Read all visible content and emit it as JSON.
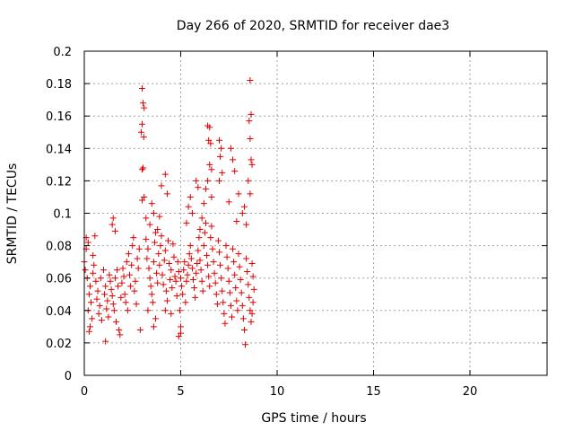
{
  "chart_data": {
    "type": "scatter",
    "title": "Day 266 of 2020, SRMTID for receiver dae3",
    "xlabel": "GPS time / hours",
    "ylabel": "SRMTID / TECUs",
    "xlim": [
      0,
      24
    ],
    "ylim": [
      0,
      0.2
    ],
    "xticks": [
      0,
      5,
      10,
      15,
      20
    ],
    "yticks": [
      0,
      0.02,
      0.04,
      0.06,
      0.08,
      0.1,
      0.12,
      0.14,
      0.16,
      0.18,
      0.2
    ],
    "xtick_labels": [
      "0",
      "5",
      "10",
      "15",
      "20"
    ],
    "ytick_labels": [
      "0",
      "0.02",
      "0.04",
      "0.06",
      "0.08",
      "0.1",
      "0.12",
      "0.14",
      "0.16",
      "0.18",
      "0.2"
    ],
    "grid": true,
    "marker": "+",
    "color": "#e00000",
    "x_data_range_hours": [
      0,
      8.8
    ],
    "series": [
      {
        "name": "SRMTID",
        "points": [
          [
            3.0,
            0.177
          ],
          [
            3.05,
            0.168
          ],
          [
            3.1,
            0.165
          ],
          [
            3.0,
            0.155
          ],
          [
            3.08,
            0.147
          ],
          [
            2.95,
            0.15
          ],
          [
            3.05,
            0.128
          ],
          [
            3.0,
            0.127
          ],
          [
            3.1,
            0.11
          ],
          [
            3.0,
            0.108
          ],
          [
            8.6,
            0.182
          ],
          [
            8.65,
            0.161
          ],
          [
            8.55,
            0.157
          ],
          [
            8.6,
            0.146
          ],
          [
            8.65,
            0.133
          ],
          [
            8.7,
            0.13
          ],
          [
            8.5,
            0.12
          ],
          [
            8.6,
            0.112
          ],
          [
            6.4,
            0.154
          ],
          [
            6.5,
            0.153
          ],
          [
            6.45,
            0.145
          ],
          [
            6.55,
            0.143
          ],
          [
            6.5,
            0.13
          ],
          [
            6.6,
            0.127
          ],
          [
            6.4,
            0.12
          ],
          [
            6.3,
            0.115
          ],
          [
            6.6,
            0.11
          ],
          [
            7.0,
            0.145
          ],
          [
            7.1,
            0.14
          ],
          [
            7.05,
            0.135
          ],
          [
            7.15,
            0.125
          ],
          [
            7.0,
            0.12
          ],
          [
            4.2,
            0.124
          ],
          [
            4.0,
            0.117
          ],
          [
            4.3,
            0.112
          ],
          [
            3.6,
            0.1
          ],
          [
            3.4,
            0.093
          ],
          [
            3.5,
            0.106
          ],
          [
            3.2,
            0.097
          ],
          [
            3.8,
            0.09
          ],
          [
            3.9,
            0.098
          ],
          [
            5.5,
            0.11
          ],
          [
            5.4,
            0.104
          ],
          [
            5.6,
            0.1
          ],
          [
            5.3,
            0.094
          ],
          [
            5.8,
            0.12
          ],
          [
            5.9,
            0.116
          ],
          [
            6.0,
            0.09
          ],
          [
            6.1,
            0.097
          ],
          [
            6.2,
            0.106
          ],
          [
            7.6,
            0.14
          ],
          [
            7.7,
            0.133
          ],
          [
            7.8,
            0.126
          ],
          [
            7.5,
            0.107
          ],
          [
            7.9,
            0.095
          ],
          [
            8.0,
            0.112
          ],
          [
            8.2,
            0.1
          ],
          [
            8.3,
            0.104
          ],
          [
            8.4,
            0.093
          ],
          [
            0.1,
            0.085
          ],
          [
            0.2,
            0.082
          ],
          [
            0.1,
            0.078
          ],
          [
            0.0,
            0.07
          ],
          [
            0.05,
            0.065
          ],
          [
            0.15,
            0.06
          ],
          [
            0.3,
            0.055
          ],
          [
            0.25,
            0.05
          ],
          [
            0.35,
            0.045
          ],
          [
            0.2,
            0.04
          ],
          [
            0.4,
            0.035
          ],
          [
            0.3,
            0.03
          ],
          [
            0.25,
            0.027
          ],
          [
            0.5,
            0.068
          ],
          [
            0.45,
            0.063
          ],
          [
            0.6,
            0.058
          ],
          [
            0.7,
            0.052
          ],
          [
            0.65,
            0.047
          ],
          [
            0.8,
            0.043
          ],
          [
            0.75,
            0.038
          ],
          [
            0.9,
            0.034
          ],
          [
            0.85,
            0.06
          ],
          [
            1.0,
            0.065
          ],
          [
            1.1,
            0.055
          ],
          [
            1.05,
            0.05
          ],
          [
            1.2,
            0.046
          ],
          [
            1.15,
            0.041
          ],
          [
            1.25,
            0.036
          ],
          [
            1.1,
            0.021
          ],
          [
            1.3,
            0.062
          ],
          [
            1.35,
            0.058
          ],
          [
            1.4,
            0.053
          ],
          [
            1.45,
            0.049
          ],
          [
            1.5,
            0.044
          ],
          [
            1.55,
            0.04
          ],
          [
            1.6,
            0.06
          ],
          [
            1.65,
            0.033
          ],
          [
            1.7,
            0.065
          ],
          [
            1.75,
            0.055
          ],
          [
            1.8,
            0.028
          ],
          [
            1.85,
            0.025
          ],
          [
            1.9,
            0.048
          ],
          [
            1.95,
            0.057
          ],
          [
            2.0,
            0.066
          ],
          [
            2.05,
            0.061
          ],
          [
            2.1,
            0.05
          ],
          [
            2.15,
            0.045
          ],
          [
            2.2,
            0.07
          ],
          [
            2.25,
            0.04
          ],
          [
            2.3,
            0.075
          ],
          [
            2.35,
            0.062
          ],
          [
            2.4,
            0.055
          ],
          [
            2.45,
            0.068
          ],
          [
            2.5,
            0.08
          ],
          [
            2.55,
            0.085
          ],
          [
            2.6,
            0.052
          ],
          [
            2.65,
            0.058
          ],
          [
            2.7,
            0.044
          ],
          [
            2.75,
            0.072
          ],
          [
            2.8,
            0.066
          ],
          [
            2.85,
            0.078
          ],
          [
            2.9,
            0.028
          ],
          [
            1.5,
            0.097
          ],
          [
            1.45,
            0.093
          ],
          [
            1.6,
            0.089
          ],
          [
            0.55,
            0.086
          ],
          [
            0.45,
            0.074
          ],
          [
            3.2,
            0.084
          ],
          [
            3.3,
            0.078
          ],
          [
            3.25,
            0.072
          ],
          [
            3.35,
            0.066
          ],
          [
            3.4,
            0.06
          ],
          [
            3.45,
            0.055
          ],
          [
            3.5,
            0.05
          ],
          [
            3.55,
            0.045
          ],
          [
            3.6,
            0.07
          ],
          [
            3.65,
            0.082
          ],
          [
            3.7,
            0.088
          ],
          [
            3.75,
            0.063
          ],
          [
            3.8,
            0.057
          ],
          [
            3.85,
            0.075
          ],
          [
            3.9,
            0.068
          ],
          [
            3.95,
            0.08
          ],
          [
            4.0,
            0.086
          ],
          [
            4.05,
            0.062
          ],
          [
            4.1,
            0.056
          ],
          [
            4.15,
            0.071
          ],
          [
            4.2,
            0.077
          ],
          [
            4.25,
            0.052
          ],
          [
            4.3,
            0.046
          ],
          [
            4.35,
            0.083
          ],
          [
            4.4,
            0.069
          ],
          [
            4.45,
            0.059
          ],
          [
            4.5,
            0.065
          ],
          [
            4.55,
            0.054
          ],
          [
            4.6,
            0.081
          ],
          [
            4.65,
            0.073
          ],
          [
            4.7,
            0.061
          ],
          [
            4.75,
            0.058
          ],
          [
            4.8,
            0.049
          ],
          [
            4.85,
            0.07
          ],
          [
            4.9,
            0.064
          ],
          [
            3.6,
            0.03
          ],
          [
            3.7,
            0.035
          ],
          [
            4.2,
            0.04
          ],
          [
            3.3,
            0.04
          ],
          [
            4.5,
            0.038
          ],
          [
            5.0,
            0.06
          ],
          [
            5.05,
            0.055
          ],
          [
            5.1,
            0.05
          ],
          [
            5.15,
            0.065
          ],
          [
            5.2,
            0.07
          ],
          [
            4.95,
            0.04
          ],
          [
            5.0,
            0.03
          ],
          [
            4.9,
            0.024
          ],
          [
            5.0,
            0.026
          ],
          [
            5.25,
            0.045
          ],
          [
            5.3,
            0.058
          ],
          [
            5.35,
            0.062
          ],
          [
            5.4,
            0.068
          ],
          [
            5.45,
            0.075
          ],
          [
            5.5,
            0.08
          ],
          [
            5.55,
            0.072
          ],
          [
            5.6,
            0.066
          ],
          [
            5.65,
            0.059
          ],
          [
            5.7,
            0.054
          ],
          [
            5.75,
            0.048
          ],
          [
            5.8,
            0.063
          ],
          [
            5.85,
            0.069
          ],
          [
            5.9,
            0.077
          ],
          [
            5.95,
            0.085
          ],
          [
            6.0,
            0.071
          ],
          [
            6.05,
            0.065
          ],
          [
            6.1,
            0.058
          ],
          [
            6.15,
            0.052
          ],
          [
            6.2,
            0.08
          ],
          [
            6.25,
            0.088
          ],
          [
            6.3,
            0.094
          ],
          [
            6.35,
            0.074
          ],
          [
            6.4,
            0.068
          ],
          [
            6.45,
            0.061
          ],
          [
            6.5,
            0.055
          ],
          [
            6.55,
            0.085
          ],
          [
            6.6,
            0.092
          ],
          [
            6.65,
            0.078
          ],
          [
            6.7,
            0.07
          ],
          [
            6.75,
            0.063
          ],
          [
            6.8,
            0.057
          ],
          [
            6.85,
            0.05
          ],
          [
            6.9,
            0.044
          ],
          [
            6.95,
            0.083
          ],
          [
            7.0,
            0.076
          ],
          [
            7.05,
            0.068
          ],
          [
            7.1,
            0.06
          ],
          [
            7.15,
            0.052
          ],
          [
            7.2,
            0.045
          ],
          [
            7.25,
            0.038
          ],
          [
            7.3,
            0.032
          ],
          [
            7.35,
            0.08
          ],
          [
            7.4,
            0.073
          ],
          [
            7.45,
            0.066
          ],
          [
            7.5,
            0.058
          ],
          [
            7.55,
            0.051
          ],
          [
            7.6,
            0.043
          ],
          [
            7.65,
            0.036
          ],
          [
            7.7,
            0.078
          ],
          [
            7.75,
            0.07
          ],
          [
            7.8,
            0.062
          ],
          [
            7.85,
            0.054
          ],
          [
            7.9,
            0.046
          ],
          [
            7.95,
            0.04
          ],
          [
            8.0,
            0.075
          ],
          [
            8.05,
            0.067
          ],
          [
            8.1,
            0.059
          ],
          [
            8.15,
            0.051
          ],
          [
            8.2,
            0.043
          ],
          [
            8.25,
            0.035
          ],
          [
            8.3,
            0.028
          ],
          [
            8.35,
            0.019
          ],
          [
            8.4,
            0.072
          ],
          [
            8.45,
            0.064
          ],
          [
            8.5,
            0.056
          ],
          [
            8.55,
            0.048
          ],
          [
            8.6,
            0.04
          ],
          [
            8.65,
            0.033
          ],
          [
            8.7,
            0.069
          ],
          [
            8.75,
            0.061
          ],
          [
            8.8,
            0.053
          ],
          [
            8.75,
            0.045
          ],
          [
            8.7,
            0.038
          ]
        ]
      }
    ]
  }
}
